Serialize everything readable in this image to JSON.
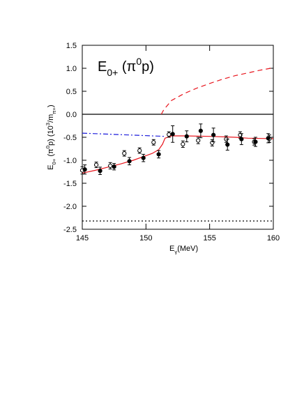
{
  "chart_data": {
    "type": "line",
    "annotation": [
      {
        "text": "E",
        "style": "normal"
      },
      {
        "text": "0+",
        "style": "sub"
      },
      {
        "text": " (π",
        "style": "normal"
      },
      {
        "text": "0",
        "style": "sup"
      },
      {
        "text": "p)",
        "style": "normal"
      }
    ],
    "annotation_color": "#e8141c",
    "xlabel": [
      {
        "text": "E",
        "style": "normal"
      },
      {
        "text": "γ",
        "style": "sub"
      },
      {
        "text": "(MeV)",
        "style": "normal"
      }
    ],
    "ylabel": [
      {
        "text": "E",
        "style": "normal"
      },
      {
        "text": "0+",
        "style": "sub"
      },
      {
        "text": " (π",
        "style": "normal"
      },
      {
        "text": "0",
        "style": "sup"
      },
      {
        "text": "p)  (10",
        "style": "normal"
      },
      {
        "text": "3",
        "style": "sup"
      },
      {
        "text": "/m",
        "style": "normal"
      },
      {
        "text": "π+",
        "style": "sub"
      },
      {
        "text": ")",
        "style": "normal"
      }
    ],
    "xlim": [
      145,
      160
    ],
    "xticks": [
      145,
      150,
      155,
      160
    ],
    "ylim": [
      -2.5,
      1.5
    ],
    "yticks": [
      1.5,
      {
        "value": 1.0,
        "label": "1.0"
      },
      0.5,
      {
        "value": 0.0,
        "label": "0.0"
      },
      -0.5,
      {
        "value": -1.0,
        "label": "-1.0"
      },
      -1.5,
      {
        "value": -2.0,
        "label": "-2.0"
      },
      -2.5
    ],
    "series": [
      {
        "type": "line",
        "style": "solid",
        "color": "#000000",
        "x": [
          145,
          160
        ],
        "values": [
          0,
          0
        ]
      },
      {
        "type": "line",
        "style": "dotted",
        "color": "#000000",
        "x": [
          145,
          160
        ],
        "values": [
          -2.32,
          -2.32
        ]
      },
      {
        "type": "line",
        "style": "dashdot",
        "color": "#1a1adb",
        "x": [
          145,
          151.5
        ],
        "values": [
          -0.41,
          -0.48
        ]
      },
      {
        "type": "line",
        "style": "dashed",
        "color": "#e8141c",
        "x": [
          151.2,
          151.4,
          152,
          153,
          154,
          155,
          156,
          157,
          158,
          159,
          160
        ],
        "values": [
          0.0,
          0.1,
          0.3,
          0.45,
          0.57,
          0.67,
          0.76,
          0.84,
          0.9,
          0.96,
          1.01
        ]
      },
      {
        "type": "line",
        "style": "solid",
        "color": "#e8141c",
        "x": [
          145,
          146,
          147,
          148,
          149,
          150,
          150.5,
          151,
          151.3,
          151.5,
          152,
          153,
          155,
          157,
          158,
          160
        ],
        "values": [
          -1.28,
          -1.22,
          -1.15,
          -1.08,
          -1.0,
          -0.9,
          -0.85,
          -0.77,
          -0.65,
          -0.52,
          -0.47,
          -0.47,
          -0.48,
          -0.5,
          -0.52,
          -0.53
        ]
      },
      {
        "type": "errorbar",
        "marker": "open",
        "color": "#000000",
        "x": [
          145.0,
          146.1,
          147.2,
          148.3,
          149.5,
          150.6,
          151.8,
          152.9,
          154.1,
          155.2,
          156.3,
          157.4,
          158.5,
          159.7
        ],
        "values": [
          -1.22,
          -1.1,
          -1.12,
          -0.85,
          -0.79,
          -0.61,
          -0.44,
          -0.65,
          -0.57,
          -0.62,
          -0.54,
          -0.45,
          -0.6,
          -0.53
        ],
        "errors": [
          0.08,
          0.06,
          0.07,
          0.06,
          0.06,
          0.06,
          0.06,
          0.07,
          0.07,
          0.07,
          0.07,
          0.07,
          0.07,
          0.08
        ]
      },
      {
        "type": "errorbar",
        "marker": "filled",
        "color": "#000000",
        "x": [
          145.2,
          146.4,
          147.5,
          148.7,
          149.8,
          151.0,
          152.1,
          153.2,
          154.3,
          155.3,
          156.4,
          157.5,
          158.6,
          159.6
        ],
        "values": [
          -1.2,
          -1.23,
          -1.14,
          -1.02,
          -0.95,
          -0.87,
          -0.43,
          -0.48,
          -0.36,
          -0.45,
          -0.66,
          -0.54,
          -0.6,
          -0.52
        ],
        "errors": [
          0.1,
          0.08,
          0.07,
          0.08,
          0.08,
          0.08,
          0.18,
          0.12,
          0.15,
          0.15,
          0.12,
          0.12,
          0.1,
          0.1
        ]
      }
    ]
  }
}
